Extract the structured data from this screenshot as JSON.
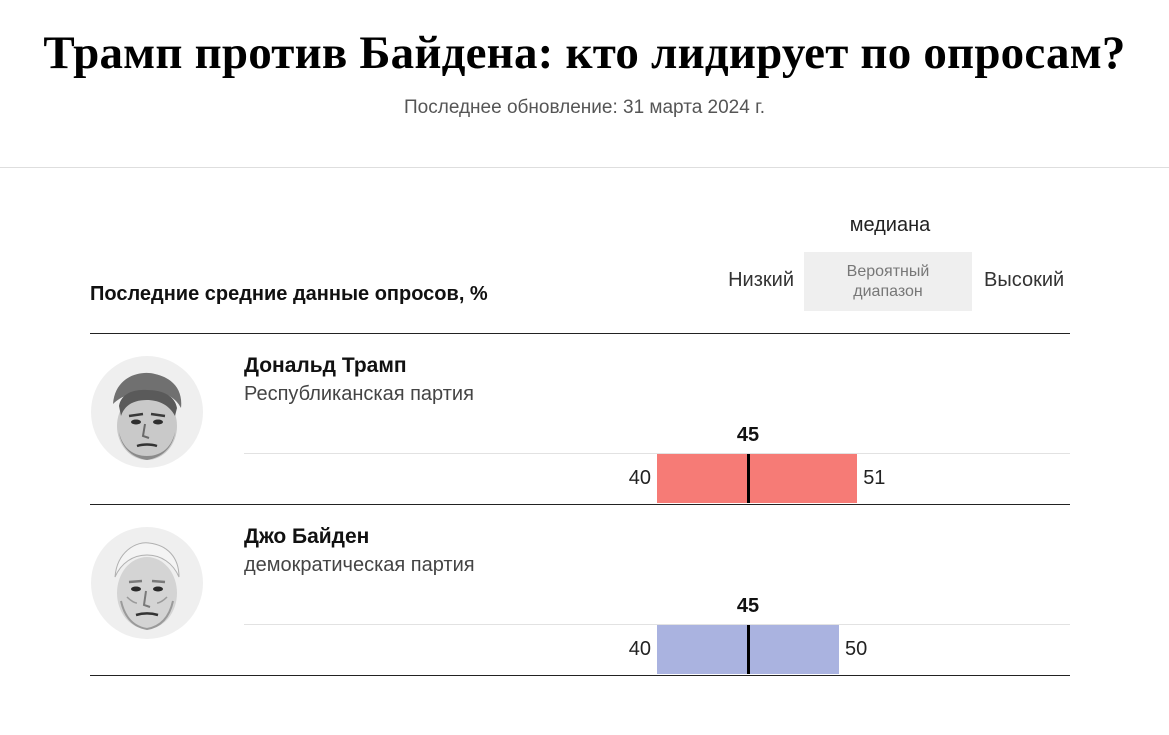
{
  "header": {
    "title": "Трамп против Байдена: кто лидирует по опросам?",
    "updated": "Последнее обновление: 31 марта 2024 г."
  },
  "legend": {
    "section_label": "Последние средние данные опросов, %",
    "median": "медиана",
    "low": "Низкий",
    "range": "Вероятный диапазон",
    "high": "Высокий"
  },
  "candidates": [
    {
      "name": "Дональд Трамп",
      "party": "Республиканская партия",
      "avatar_icon": "trump-portrait-icon"
    },
    {
      "name": "Джо Байден",
      "party": "демократическая партия",
      "avatar_icon": "biden-portrait-icon"
    }
  ],
  "chart_data": {
    "type": "bar",
    "categories": [
      "Дональд Трамп",
      "Джо Байден"
    ],
    "series": [
      {
        "low": 40,
        "median": 45,
        "high": 51,
        "color": "#f67b76"
      },
      {
        "low": 40,
        "median": 45,
        "high": 50,
        "color": "#aab3e0"
      }
    ],
    "xlim": [
      40,
      51
    ],
    "grid": false
  }
}
